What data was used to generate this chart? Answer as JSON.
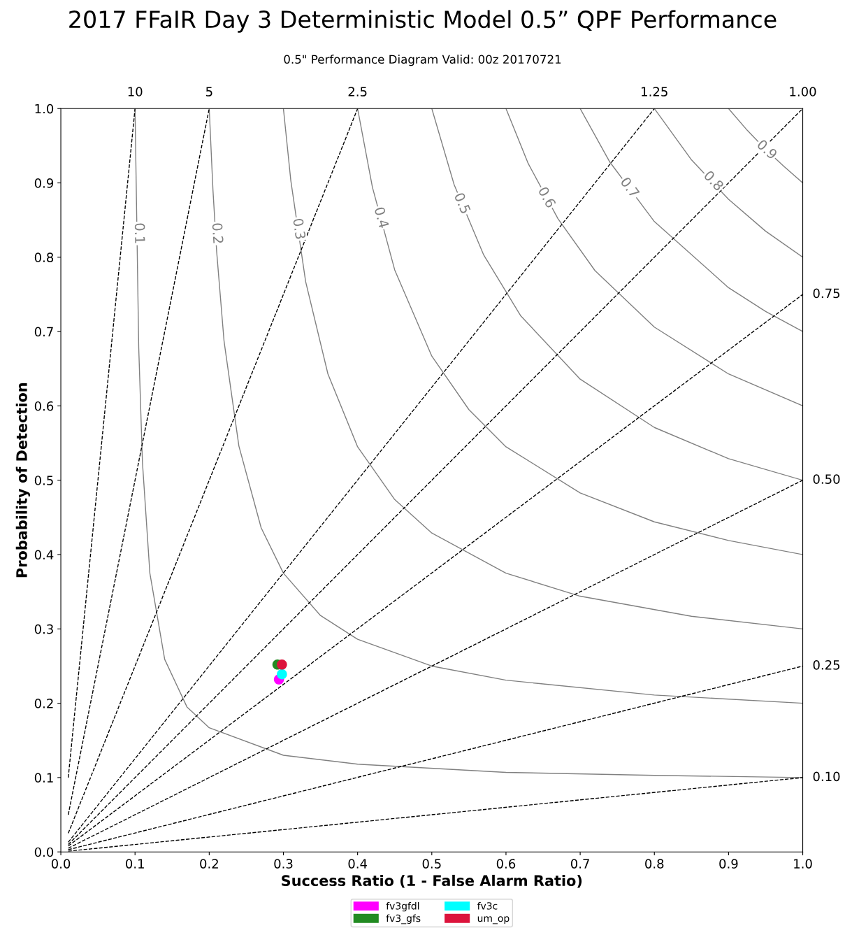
{
  "chart_data": {
    "type": "scatter",
    "title": "2017 FFaIR Day 3 Deterministic Model 0.5” QPF Performance",
    "subtitle": "0.5\" Performance Diagram Valid: 00z 20170721",
    "xlabel": "Success Ratio (1 - False Alarm Ratio)",
    "ylabel": "Probability of Detection",
    "xlim": [
      0,
      1
    ],
    "ylim": [
      0,
      1
    ],
    "xticks": [
      {
        "value": 0,
        "label": "0.0"
      },
      0.1,
      0.2,
      0.3,
      0.4,
      0.5,
      0.6,
      0.7,
      0.8,
      0.9,
      {
        "value": 1,
        "label": "1.0"
      }
    ],
    "yticks": [
      {
        "value": 0,
        "label": "0.0"
      },
      0.1,
      0.2,
      0.3,
      0.4,
      0.5,
      0.6,
      0.7,
      0.8,
      0.9,
      {
        "value": 1,
        "label": "1.0"
      }
    ],
    "grid": false,
    "legend": "bottom",
    "series": [
      {
        "name": "fv3gfdl",
        "marker": "circle",
        "color": "#ff00ff",
        "x": [
          0.294
        ],
        "values": [
          0.232
        ]
      },
      {
        "name": "fv3_gfs",
        "marker": "circle",
        "color": "#228b22",
        "x": [
          0.292
        ],
        "values": [
          0.252
        ]
      },
      {
        "name": "fv3c",
        "marker": "circle",
        "color": "#00ffff",
        "x": [
          0.298
        ],
        "values": [
          0.239
        ]
      },
      {
        "name": "um_op",
        "marker": "circle",
        "color": "#dc143c",
        "x": [
          0.298
        ],
        "values": [
          0.252
        ]
      },
      {
        "type": "line",
        "line_style": "solid",
        "color": "#808080",
        "x": [
          0.1,
          0.105,
          0.11,
          0.12,
          0.14,
          0.17,
          0.2,
          0.3,
          0.4,
          0.6,
          0.8,
          1.0
        ],
        "values": [
          1,
          0.678,
          0.524,
          0.375,
          0.259,
          0.195,
          0.167,
          0.13,
          0.118,
          0.107,
          0.103,
          0.1
        ]
      },
      {
        "type": "line",
        "line_style": "solid",
        "color": "#808080",
        "x": [
          0.2,
          0.205,
          0.21,
          0.22,
          0.24,
          0.27,
          0.3,
          0.35,
          0.4,
          0.5,
          0.6,
          0.8,
          1.0
        ],
        "values": [
          1,
          0.891,
          0.808,
          0.687,
          0.546,
          0.436,
          0.375,
          0.318,
          0.286,
          0.25,
          0.231,
          0.211,
          0.2
        ]
      },
      {
        "type": "line",
        "line_style": "solid",
        "color": "#808080",
        "x": [
          0.3,
          0.31,
          0.33,
          0.36,
          0.4,
          0.45,
          0.5,
          0.6,
          0.7,
          0.85,
          1.0
        ],
        "values": [
          1,
          0.903,
          0.767,
          0.643,
          0.545,
          0.474,
          0.429,
          0.375,
          0.344,
          0.317,
          0.3
        ]
      },
      {
        "type": "line",
        "line_style": "solid",
        "color": "#808080",
        "x": [
          0.4,
          0.42,
          0.45,
          0.5,
          0.55,
          0.6,
          0.7,
          0.8,
          0.9,
          1.0
        ],
        "values": [
          1,
          0.894,
          0.783,
          0.667,
          0.595,
          0.545,
          0.483,
          0.444,
          0.419,
          0.4
        ]
      },
      {
        "type": "line",
        "line_style": "solid",
        "color": "#808080",
        "x": [
          0.5,
          0.53,
          0.57,
          0.62,
          0.7,
          0.8,
          0.9,
          1.0
        ],
        "values": [
          1,
          0.898,
          0.803,
          0.721,
          0.636,
          0.571,
          0.529,
          0.5
        ]
      },
      {
        "type": "line",
        "line_style": "solid",
        "color": "#808080",
        "x": [
          0.6,
          0.63,
          0.67,
          0.72,
          0.8,
          0.9,
          1.0
        ],
        "values": [
          1,
          0.926,
          0.852,
          0.782,
          0.706,
          0.643,
          0.6
        ]
      },
      {
        "type": "line",
        "line_style": "solid",
        "color": "#808080",
        "x": [
          0.7,
          0.74,
          0.8,
          0.9,
          0.95,
          1.0
        ],
        "values": [
          1,
          0.928,
          0.848,
          0.759,
          0.727,
          0.7
        ]
      },
      {
        "type": "line",
        "line_style": "solid",
        "color": "#808080",
        "x": [
          0.8,
          0.85,
          0.9,
          0.95,
          1.0
        ],
        "values": [
          1,
          0.931,
          0.878,
          0.835,
          0.8
        ]
      },
      {
        "type": "line",
        "line_style": "solid",
        "color": "#808080",
        "x": [
          0.9,
          0.925,
          0.95,
          0.975,
          1.0
        ],
        "values": [
          1,
          0.971,
          0.945,
          0.922,
          0.9
        ]
      },
      {
        "name": "10",
        "type": "line",
        "line_style": "dashed",
        "color": "#000000",
        "x": [
          0.01,
          0.1
        ],
        "values": [
          0.1,
          1
        ]
      },
      {
        "name": "5",
        "type": "line",
        "line_style": "dashed",
        "color": "#000000",
        "x": [
          0.01,
          0.2
        ],
        "values": [
          0.05,
          1
        ]
      },
      {
        "name": "2.5",
        "type": "line",
        "line_style": "dashed",
        "color": "#000000",
        "x": [
          0.01,
          0.4
        ],
        "values": [
          0.025,
          1
        ]
      },
      {
        "name": "1.25",
        "type": "line",
        "line_style": "dashed",
        "color": "#000000",
        "x": [
          0.01,
          0.8
        ],
        "values": [
          0.013,
          1
        ]
      },
      {
        "name": "1.00",
        "type": "line",
        "line_style": "dashed",
        "color": "#000000",
        "x": [
          0.01,
          1.0
        ],
        "values": [
          0.01,
          1
        ]
      },
      {
        "name": "0.75",
        "type": "line",
        "line_style": "dashed",
        "color": "#000000",
        "x": [
          0.01,
          1.0
        ],
        "values": [
          0.008,
          0.75
        ]
      },
      {
        "name": "0.50",
        "type": "line",
        "line_style": "dashed",
        "color": "#000000",
        "x": [
          0.01,
          1.0
        ],
        "values": [
          0.005,
          0.5
        ]
      },
      {
        "name": "0.25",
        "type": "line",
        "line_style": "dashed",
        "color": "#000000",
        "x": [
          0.01,
          1.0
        ],
        "values": [
          0.003,
          0.25
        ]
      },
      {
        "name": "0.10",
        "type": "line",
        "line_style": "dashed",
        "color": "#000000",
        "x": [
          0.01,
          1.0
        ],
        "values": [
          0.001,
          0.1
        ]
      }
    ],
    "annotations": [
      {
        "text": "0.1",
        "x": 0.105,
        "y": 0.832
      },
      {
        "text": "0.2",
        "x": 0.21,
        "y": 0.832
      },
      {
        "text": "0.3",
        "x": 0.32,
        "y": 0.838
      },
      {
        "text": "0.4",
        "x": 0.431,
        "y": 0.853
      },
      {
        "text": "0.5",
        "x": 0.54,
        "y": 0.872
      },
      {
        "text": "0.6",
        "x": 0.654,
        "y": 0.88
      },
      {
        "text": "0.7",
        "x": 0.766,
        "y": 0.893
      },
      {
        "text": "0.8",
        "x": 0.879,
        "y": 0.902
      },
      {
        "text": "0.9",
        "x": 0.951,
        "y": 0.944
      }
    ]
  }
}
